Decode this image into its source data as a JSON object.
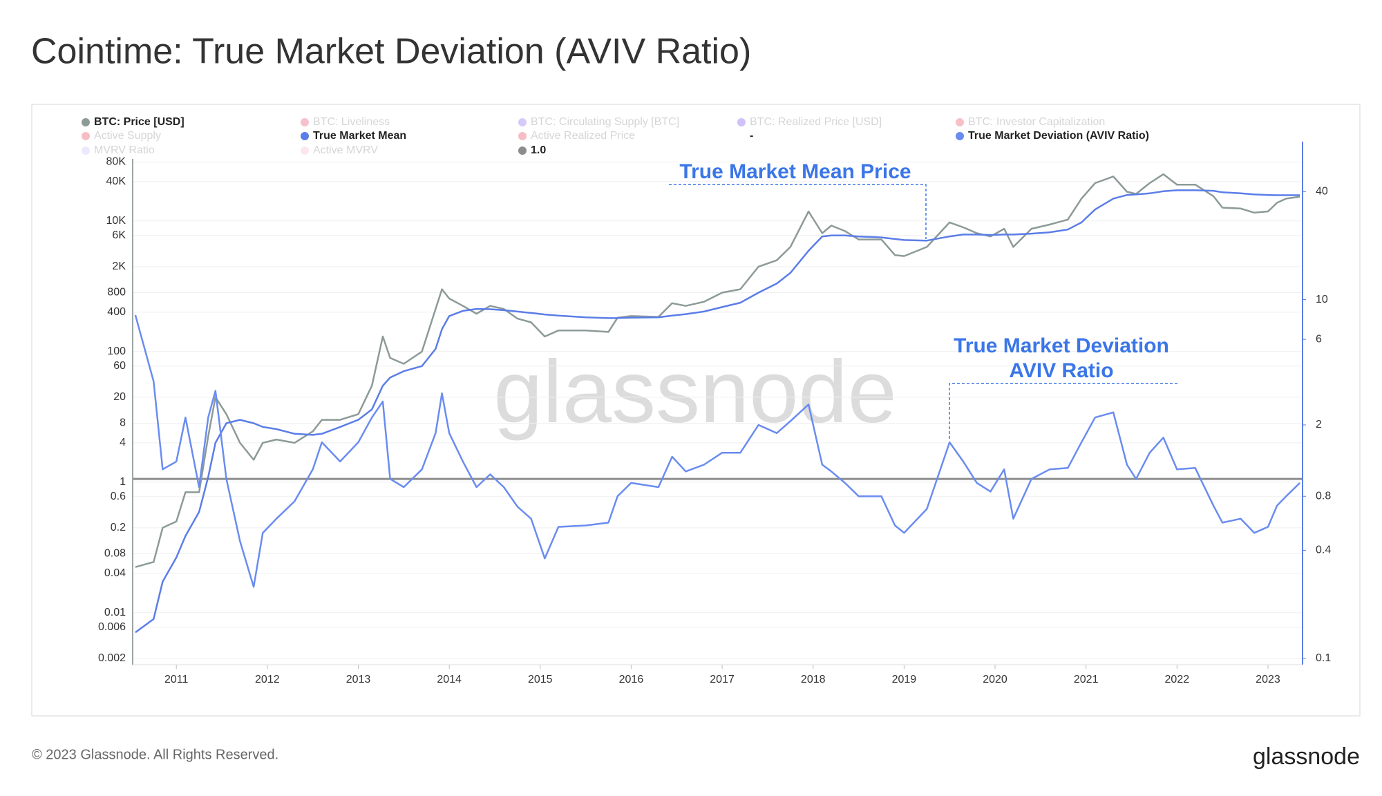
{
  "chart_data": {
    "type": "line",
    "title": "Cointime: True Market Deviation (AVIV Ratio)",
    "watermark": "glassnode",
    "x": [
      2010.55,
      2010.75,
      2010.85,
      2011.0,
      2011.1,
      2011.25,
      2011.35,
      2011.43,
      2011.55,
      2011.7,
      2011.85,
      2011.95,
      2012.1,
      2012.3,
      2012.5,
      2012.6,
      2012.8,
      2013.0,
      2013.15,
      2013.27,
      2013.35,
      2013.5,
      2013.7,
      2013.85,
      2013.92,
      2014.0,
      2014.15,
      2014.3,
      2014.45,
      2014.6,
      2014.75,
      2014.9,
      2015.05,
      2015.2,
      2015.5,
      2015.75,
      2015.85,
      2016.0,
      2016.3,
      2016.45,
      2016.6,
      2016.8,
      2017.0,
      2017.2,
      2017.4,
      2017.6,
      2017.75,
      2017.95,
      2018.1,
      2018.2,
      2018.35,
      2018.5,
      2018.75,
      2018.9,
      2019.0,
      2019.25,
      2019.5,
      2019.65,
      2019.8,
      2019.95,
      2020.1,
      2020.2,
      2020.4,
      2020.6,
      2020.8,
      2020.95,
      2021.1,
      2021.3,
      2021.45,
      2021.55,
      2021.7,
      2021.85,
      2022.0,
      2022.2,
      2022.4,
      2022.5,
      2022.7,
      2022.85,
      2023.0,
      2023.1,
      2023.2,
      2023.35
    ],
    "xlim": [
      2010.52,
      2023.38
    ],
    "xticks": [
      2011,
      2012,
      2013,
      2014,
      2015,
      2016,
      2017,
      2018,
      2019,
      2020,
      2021,
      2022,
      2023
    ],
    "ylog": true,
    "ylim": [
      0.0016,
      164000
    ],
    "yticks": [
      0.002,
      0.006,
      0.01,
      0.04,
      0.08,
      0.2,
      0.6,
      1,
      4,
      8,
      20,
      60,
      100,
      400,
      800,
      {
        "value": 2000,
        "label": "2K"
      },
      {
        "value": 6000,
        "label": "6K"
      },
      {
        "value": 10000,
        "label": "10K"
      },
      {
        "value": 40000,
        "label": "40K"
      },
      {
        "value": 80000,
        "label": "80K"
      }
    ],
    "y2log": true,
    "y2lim": [
      0.092,
      76
    ],
    "y2ticks": [
      0.1,
      0.4,
      0.8,
      2,
      6,
      10,
      40
    ],
    "grid": true,
    "series": [
      {
        "name": "BTC: Price [USD]",
        "color": "#8c9a98",
        "values": [
          0.05,
          0.06,
          0.2,
          0.25,
          0.7,
          0.7,
          5,
          20,
          11,
          4,
          2.2,
          4,
          4.5,
          4,
          6,
          9,
          9,
          11,
          30,
          170,
          80,
          65,
          100,
          450,
          900,
          650,
          500,
          380,
          500,
          450,
          320,
          280,
          170,
          210,
          210,
          200,
          330,
          350,
          340,
          550,
          500,
          580,
          800,
          900,
          2000,
          2500,
          4000,
          14000,
          6500,
          8500,
          7000,
          5200,
          5200,
          3000,
          2900,
          4000,
          9500,
          8000,
          6500,
          5800,
          7600,
          4000,
          7600,
          8800,
          10500,
          22000,
          38000,
          48000,
          28000,
          26000,
          38000,
          52000,
          36000,
          36000,
          24000,
          16000,
          15500,
          13400,
          14000,
          19000,
          22000,
          23500
        ]
      },
      {
        "name": "True Market Mean",
        "color": "#5b7de8",
        "values": [
          0.005,
          0.008,
          0.03,
          0.07,
          0.15,
          0.35,
          1.2,
          4,
          8,
          9,
          8,
          7,
          6.5,
          5.5,
          5.3,
          5.5,
          7,
          9,
          13,
          30,
          40,
          50,
          60,
          110,
          220,
          350,
          420,
          450,
          445,
          430,
          410,
          390,
          370,
          355,
          335,
          325,
          325,
          330,
          335,
          355,
          375,
          410,
          480,
          560,
          800,
          1100,
          1600,
          3500,
          5800,
          6000,
          6000,
          5800,
          5600,
          5300,
          5100,
          5000,
          5800,
          6200,
          6200,
          6100,
          6200,
          6200,
          6400,
          6700,
          7400,
          9500,
          15000,
          22000,
          25000,
          25500,
          26500,
          28500,
          29500,
          29500,
          29000,
          27500,
          26500,
          25500,
          25000,
          24800,
          24800,
          24800
        ]
      },
      {
        "name": "True Market Deviation (AVIV Ratio)",
        "color": "#6a8cf0",
        "axis": "y2",
        "values": [
          8.2,
          3.5,
          1.13,
          1.25,
          2.2,
          0.9,
          2.2,
          3.1,
          1.0,
          0.45,
          0.25,
          0.5,
          0.6,
          0.75,
          1.13,
          1.6,
          1.25,
          1.6,
          2.2,
          2.7,
          1.0,
          0.9,
          1.13,
          1.8,
          3.0,
          1.8,
          1.25,
          0.9,
          1.06,
          0.9,
          0.7,
          0.6,
          0.36,
          0.54,
          0.55,
          0.57,
          0.8,
          0.95,
          0.9,
          1.33,
          1.1,
          1.2,
          1.4,
          1.4,
          2.0,
          1.8,
          2.1,
          2.6,
          1.2,
          1.1,
          0.95,
          0.8,
          0.8,
          0.55,
          0.5,
          0.68,
          1.6,
          1.25,
          0.95,
          0.85,
          1.13,
          0.6,
          1.0,
          1.13,
          1.15,
          1.6,
          2.2,
          2.35,
          1.2,
          1.0,
          1.4,
          1.7,
          1.13,
          1.15,
          0.71,
          0.57,
          0.6,
          0.5,
          0.54,
          0.71,
          0.8,
          0.95
        ]
      }
    ],
    "hlines": [
      {
        "name": "1.0",
        "value": 1,
        "axis": "y2",
        "color": "#8c8c8c"
      }
    ],
    "other_legend": [
      {
        "name": "BTC: Liveliness",
        "color": "#e8506b",
        "active": false
      },
      {
        "name": "BTC: Circulating Supply [BTC]",
        "color": "#8a66f0",
        "active": false
      },
      {
        "name": "BTC: Realized Price [USD]",
        "color": "#7b4ff0",
        "active": false
      },
      {
        "name": "BTC: Investor Capitalization",
        "color": "#e84a5f",
        "active": false
      },
      {
        "name": "Active Supply",
        "color": "#e8435a",
        "active": false
      },
      {
        "name": "Active Realized Price",
        "color": "#e8435a",
        "active": false
      },
      {
        "name": "-",
        "active": true
      },
      {
        "name": "MVRV Ratio",
        "color": "#cbbcf5",
        "active": false
      },
      {
        "name": "Active MVRV",
        "color": "#f5bccb",
        "active": false
      }
    ],
    "annotations": [
      {
        "text": "True Market Mean Price"
      },
      {
        "lines": [
          "True Market Deviation",
          "AVIV Ratio"
        ]
      }
    ]
  },
  "footer": {
    "copyright": "© 2023 Glassnode. All Rights Reserved.",
    "logo": "glassnode"
  }
}
